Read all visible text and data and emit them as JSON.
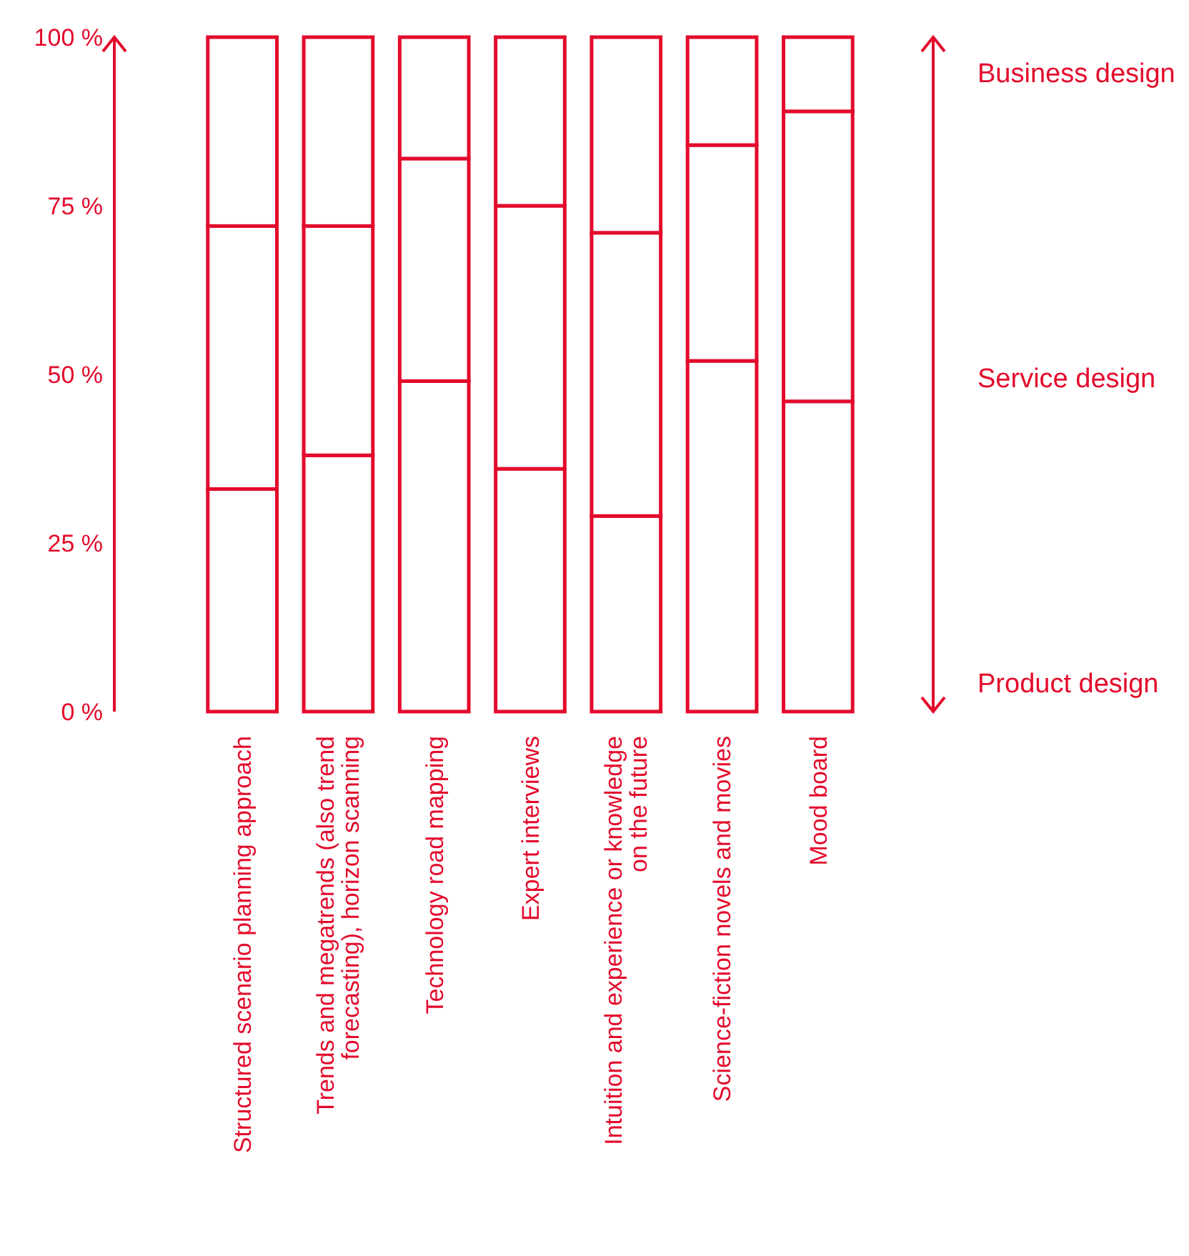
{
  "chart_data": {
    "type": "bar",
    "stacked": true,
    "categories": [
      "Structured scenario planning approach",
      "Trends and megatrends (also trend\nforecasting), horizon scanning",
      "Technology road mapping",
      "Expert interviews",
      "Intuition and experience or knowledge\non the future",
      "Science-fiction novels and movies",
      "Mood board"
    ],
    "series": [
      {
        "name": "Product design",
        "color": "#e30b2c",
        "values": [
          33,
          38,
          49,
          36,
          29,
          52,
          46
        ]
      },
      {
        "name": "Service design",
        "color": "#e30b2c",
        "values": [
          39,
          34,
          33,
          39,
          42,
          32,
          43
        ]
      },
      {
        "name": "Business design",
        "color": "#e30b2c",
        "values": [
          28,
          28,
          18,
          25,
          29,
          16,
          11
        ]
      }
    ],
    "ylim": [
      0,
      100
    ],
    "yticks": [
      {
        "value": 0,
        "label": "0 %"
      },
      {
        "value": 25,
        "label": "25 %"
      },
      {
        "value": 50,
        "label": "50 %"
      },
      {
        "value": 75,
        "label": "75 %"
      },
      {
        "value": 100,
        "label": "100 %"
      }
    ]
  }
}
